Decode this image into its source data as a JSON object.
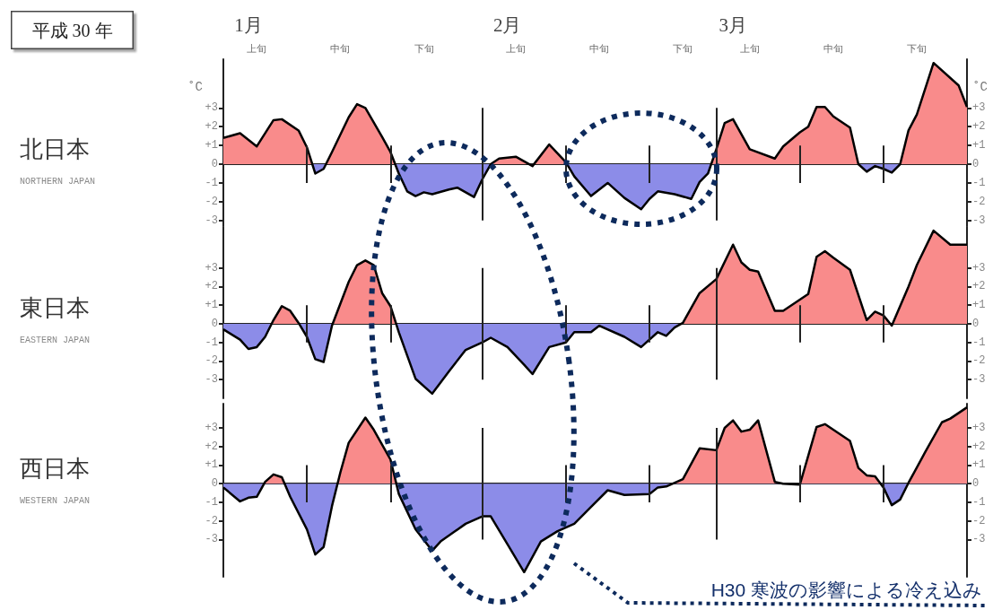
{
  "chart_data": [
    {
      "type": "area",
      "title": "北日本",
      "ylabel": "˚C",
      "y2label": "˚C",
      "colors": [
        "#f98b8b",
        "#8c8ce8"
      ],
      "annotations": [
        "NORTHERN JAPAN",
        "平成 30 年",
        "上旬",
        "中旬",
        "下旬",
        "上旬",
        "中旬",
        "下旬",
        "上旬",
        "中旬",
        "下旬"
      ],
      "x": [
        "--01-01",
        "--01-03",
        "--01-05",
        "--01-07",
        "--01-08",
        "--01-10",
        "--01-11",
        "--01-12",
        "--01-13",
        "--01-14",
        "--01-16",
        "--01-17",
        "--01-18",
        "--01-20",
        "--01-21",
        "--01-22",
        "--01-23",
        "--01-24",
        "--01-25",
        "--01-26",
        "--01-28",
        "--01-29",
        "--01-31",
        "--02-01",
        "--02-02",
        "--02-03",
        "--02-05",
        "--02-07",
        "--02-09",
        "--02-11",
        "--02-12",
        "--02-14",
        "--02-16",
        "--02-18",
        "--02-20",
        "--02-21",
        "--02-22",
        "--02-24",
        "--02-26",
        "--02-27",
        "--02-28",
        "--03-01",
        "--03-02",
        "--03-03",
        "--03-05",
        "--03-08",
        "--03-09",
        "--03-11",
        "--03-12",
        "--03-13",
        "--03-14",
        "--03-15",
        "--03-17",
        "--03-18",
        "--03-19",
        "--03-20",
        "--03-21",
        "--03-22",
        "--03-23",
        "--03-24",
        "--03-25",
        "--03-27",
        "--03-30",
        "--03-31"
      ],
      "series": [
        {
          "color": "#000000",
          "values": [
            1.4,
            1.65,
            0.95,
            2.35,
            2.4,
            1.8,
            0.9,
            -0.5,
            -0.25,
            0.65,
            2.5,
            3.2,
            3.0,
            1.45,
            0.65,
            -0.5,
            -1.45,
            -1.7,
            -1.5,
            -1.6,
            -1.35,
            -1.25,
            -1.75,
            -0.8,
            0,
            0.3,
            0.4,
            -0.1,
            1.05,
            0.1,
            -0.65,
            -1.7,
            -1.0,
            -1.8,
            -2.4,
            -1.85,
            -1.45,
            -1.6,
            -1.85,
            -0.95,
            -0.5,
            0.8,
            2.2,
            2.4,
            0.8,
            0.3,
            0.95,
            1.7,
            2.0,
            3.05,
            3.05,
            2.55,
            1.95,
            0,
            -0.4,
            -0.1,
            -0.25,
            -0.45,
            0,
            1.8,
            2.65,
            5.4,
            4.2,
            3.05
          ]
        }
      ],
      "xlim": [
        "--01-01",
        "--03-31"
      ],
      "xticks": [
        {
          "value": "--01-04",
          "label": "1月"
        },
        {
          "value": "--02-04",
          "label": "2月"
        },
        {
          "value": "--03-03",
          "label": "3月"
        }
      ],
      "ylim": [
        -3.3,
        5.6
      ],
      "yticks": [
        -3,
        -2,
        -1,
        0,
        {
          "value": 1,
          "label": "+1"
        },
        {
          "value": 2,
          "label": "+2"
        },
        {
          "value": 3,
          "label": "+3"
        }
      ],
      "y2lim": [
        -3.3,
        5.6
      ],
      "y2ticks": [
        -3,
        -2,
        -1,
        0,
        {
          "value": 1,
          "label": "+1"
        },
        {
          "value": 2,
          "label": "+2"
        },
        {
          "value": 3,
          "label": "+3"
        }
      ],
      "ref_lines": [
        {
          "axis": "x",
          "value": "--01-11"
        },
        {
          "axis": "x",
          "value": "--01-21"
        },
        {
          "axis": "x",
          "value": "--02-01"
        },
        {
          "axis": "x",
          "value": "--02-11"
        },
        {
          "axis": "x",
          "value": "--02-21"
        },
        {
          "axis": "x",
          "value": "--03-01"
        },
        {
          "axis": "x",
          "value": "--03-11"
        },
        {
          "axis": "x",
          "value": "--03-21"
        }
      ]
    },
    {
      "type": "area",
      "title": "東日本",
      "annotations": [
        "EASTERN JAPAN"
      ],
      "colors": [
        "#f98b8b",
        "#8c8ce8"
      ],
      "tick_labels": "y",
      "x": [
        "--01-01",
        "--01-03",
        "--01-04",
        "--01-05",
        "--01-06",
        "--01-07",
        "--01-08",
        "--01-09",
        "--01-10",
        "--01-11",
        "--01-12",
        "--01-13",
        "--01-14",
        "--01-16",
        "--01-17",
        "--01-18",
        "--01-19",
        "--01-20",
        "--01-21",
        "--01-22",
        "--01-24",
        "--01-26",
        "--01-28",
        "--01-30",
        "--02-01",
        "--02-02",
        "--02-04",
        "--02-06",
        "--02-07",
        "--02-09",
        "--02-11",
        "--02-12",
        "--02-14",
        "--02-15",
        "--02-18",
        "--02-20",
        "--02-22",
        "--02-23",
        "--02-24",
        "--02-25",
        "--02-27",
        "--03-01",
        "--03-03",
        "--03-04",
        "--03-05",
        "--03-06",
        "--03-08",
        "--03-09",
        "--03-12",
        "--03-13",
        "--03-14",
        "--03-15",
        "--03-17",
        "--03-19",
        "--03-20",
        "--03-21",
        "--03-22",
        "--03-24",
        "--03-25",
        "--03-27",
        "--03-29",
        "--03-31"
      ],
      "series": [
        {
          "color": "#000000",
          "values": [
            -0.3,
            -0.85,
            -1.35,
            -1.25,
            -0.7,
            0.2,
            0.95,
            0.7,
            0.05,
            -0.7,
            -1.9,
            -2.05,
            -0.1,
            2.25,
            3.15,
            3.4,
            3.15,
            1.65,
            0.95,
            -0.45,
            -2.95,
            -3.75,
            -2.55,
            -1.4,
            -1.0,
            -0.75,
            -1.25,
            -2.2,
            -2.7,
            -1.25,
            -1.0,
            -0.45,
            -0.45,
            -0.1,
            -0.7,
            -1.25,
            -0.45,
            -0.65,
            -0.2,
            0.05,
            1.65,
            2.4,
            4.25,
            3.3,
            2.9,
            2.8,
            0.7,
            0.7,
            1.6,
            3.6,
            3.9,
            3.55,
            2.9,
            0.2,
            0.65,
            0.45,
            -0.1,
            2.0,
            3.15,
            5.0,
            4.25,
            4.25
          ]
        }
      ],
      "xlim": [
        "--01-01",
        "--03-31"
      ],
      "ylim": [
        -4,
        5.2
      ],
      "yticks": [
        -3,
        -2,
        -1,
        0,
        {
          "value": 1,
          "label": "+1"
        },
        {
          "value": 2,
          "label": "+2"
        },
        {
          "value": 3,
          "label": "+3"
        }
      ],
      "y2lim": [
        -4,
        5.2
      ],
      "y2ticks": [
        -3,
        -2,
        -1,
        0,
        {
          "value": 1,
          "label": "+1"
        },
        {
          "value": 2,
          "label": "+2"
        },
        {
          "value": 3,
          "label": "+3"
        }
      ],
      "ref_lines": [
        {
          "axis": "x",
          "value": "--01-11"
        },
        {
          "axis": "x",
          "value": "--01-21"
        },
        {
          "axis": "x",
          "value": "--02-01"
        },
        {
          "axis": "x",
          "value": "--02-11"
        },
        {
          "axis": "x",
          "value": "--02-21"
        },
        {
          "axis": "x",
          "value": "--03-01"
        },
        {
          "axis": "x",
          "value": "--03-11"
        },
        {
          "axis": "x",
          "value": "--03-21"
        }
      ]
    },
    {
      "type": "area",
      "title": "西日本",
      "annotations": [
        "WESTERN JAPAN",
        "H30 寒波の影響による冷え込み"
      ],
      "colors": [
        "#f98b8b",
        "#8c8ce8"
      ],
      "tick_labels": "y",
      "x": [
        "--01-01",
        "--01-03",
        "--01-04",
        "--01-05",
        "--01-06",
        "--01-07",
        "--01-08",
        "--01-09",
        "--01-11",
        "--01-12",
        "--01-13",
        "--01-14",
        "--01-15",
        "--01-16",
        "--01-18",
        "--01-19",
        "--01-21",
        "--01-22",
        "--01-24",
        "--01-26",
        "--01-27",
        "--01-30",
        "--02-01",
        "--02-02",
        "--02-04",
        "--02-06",
        "--02-08",
        "--02-10",
        "--02-12",
        "--02-14",
        "--02-16",
        "--02-18",
        "--02-21",
        "--02-22",
        "--02-23",
        "--02-25",
        "--02-27",
        "--03-01",
        "--03-02",
        "--03-03",
        "--03-04",
        "--03-05",
        "--03-06",
        "--03-08",
        "--03-09",
        "--03-11",
        "--03-13",
        "--03-14",
        "--03-17",
        "--03-18",
        "--03-19",
        "--03-20",
        "--03-21",
        "--03-22",
        "--03-23",
        "--03-24",
        "--03-26",
        "--03-28",
        "--03-29",
        "--03-31"
      ],
      "series": [
        {
          "color": "#000000",
          "values": [
            -0.2,
            -0.95,
            -0.75,
            -0.7,
            0.1,
            0.5,
            0.35,
            -0.7,
            -2.45,
            -3.8,
            -3.4,
            -1.2,
            0.6,
            2.2,
            3.55,
            2.9,
            1.3,
            -0.55,
            -2.45,
            -3.6,
            -3.1,
            -2.15,
            -1.75,
            -1.75,
            -3.25,
            -4.75,
            -3.1,
            -2.55,
            -2.15,
            -1.25,
            -0.35,
            -0.6,
            -0.55,
            -0.2,
            -0.15,
            0.25,
            1.9,
            1.8,
            3.0,
            3.4,
            2.8,
            2.9,
            3.4,
            0.1,
            0,
            -0.05,
            3.05,
            3.2,
            2.3,
            0.85,
            0.45,
            0.4,
            -0.2,
            -1.15,
            -0.85,
            0.05,
            1.7,
            3.3,
            3.5,
            4.1
          ]
        }
      ],
      "xlim": [
        "--01-01",
        "--03-31"
      ],
      "ylim": [
        -5,
        4.3
      ],
      "yticks": [
        -3,
        -2,
        -1,
        0,
        {
          "value": 1,
          "label": "+1"
        },
        {
          "value": 2,
          "label": "+2"
        },
        {
          "value": 3,
          "label": "+3"
        }
      ],
      "y2lim": [
        -5,
        4.3
      ],
      "y2ticks": [
        -3,
        -2,
        -1,
        0,
        {
          "value": 1,
          "label": "+1"
        },
        {
          "value": 2,
          "label": "+2"
        },
        {
          "value": 3,
          "label": "+3"
        }
      ],
      "ref_lines": [
        {
          "axis": "x",
          "value": "--01-11"
        },
        {
          "axis": "x",
          "value": "--01-21"
        },
        {
          "axis": "x",
          "value": "--02-01"
        },
        {
          "axis": "x",
          "value": "--02-11"
        },
        {
          "axis": "x",
          "value": "--02-21"
        },
        {
          "axis": "x",
          "value": "--03-01"
        },
        {
          "axis": "x",
          "value": "--03-11"
        },
        {
          "axis": "x",
          "value": "--03-21"
        }
      ]
    }
  ]
}
